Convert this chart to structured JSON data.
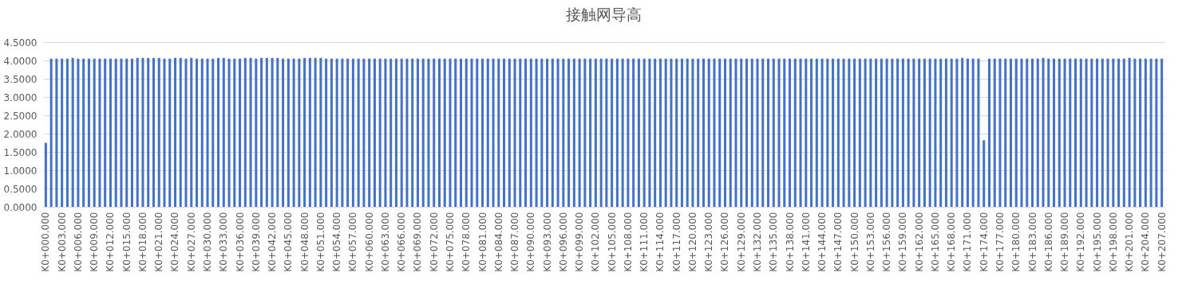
{
  "chart_data": {
    "type": "bar",
    "title": "接触网导高",
    "color": "#4472c4",
    "grid": "y",
    "ylim": [
      0,
      4.5
    ],
    "yticks": [
      {
        "value": 0,
        "label": "0.0000"
      },
      {
        "value": 0.5,
        "label": "0.5000"
      },
      {
        "value": 1,
        "label": "1.0000"
      },
      {
        "value": 1.5,
        "label": "1.5000"
      },
      {
        "value": 2,
        "label": "2.0000"
      },
      {
        "value": 2.5,
        "label": "2.5000"
      },
      {
        "value": 3,
        "label": "3.0000"
      },
      {
        "value": 3.5,
        "label": "3.5000"
      },
      {
        "value": 4,
        "label": "4.0000"
      },
      {
        "value": 4.5,
        "label": "4.5000"
      }
    ],
    "categories": [
      "K0+000.000",
      null,
      null,
      "K0+003.000",
      null,
      null,
      "K0+006.000",
      null,
      null,
      "K0+009.000",
      null,
      null,
      "K0+012.000",
      null,
      null,
      "K0+015.000",
      null,
      null,
      "K0+018.000",
      null,
      null,
      "K0+021.000",
      null,
      null,
      "K0+024.000",
      null,
      null,
      "K0+027.000",
      null,
      null,
      "K0+030.000",
      null,
      null,
      "K0+033.000",
      null,
      null,
      "K0+036.000",
      null,
      null,
      "K0+039.000",
      null,
      null,
      "K0+042.000",
      null,
      null,
      "K0+045.000",
      null,
      null,
      "K0+048.000",
      null,
      null,
      "K0+051.000",
      null,
      null,
      "K0+054.000",
      null,
      null,
      "K0+057.000",
      null,
      null,
      "K0+060.000",
      null,
      null,
      "K0+063.000",
      null,
      null,
      "K0+066.000",
      null,
      null,
      "K0+069.000",
      null,
      null,
      "K0+072.000",
      null,
      null,
      "K0+075.000",
      null,
      null,
      "K0+078.000",
      null,
      null,
      "K0+081.000",
      null,
      null,
      "K0+084.000",
      null,
      null,
      "K0+087.000",
      null,
      null,
      "K0+090.000",
      null,
      null,
      "K0+093.000",
      null,
      null,
      "K0+096.000",
      null,
      null,
      "K0+099.000",
      null,
      null,
      "K0+102.000",
      null,
      null,
      "K0+105.000",
      null,
      null,
      "K0+108.000",
      null,
      null,
      "K0+111.000",
      null,
      null,
      "K0+114.000",
      null,
      null,
      "K0+117.000",
      null,
      null,
      "K0+120.000",
      null,
      null,
      "K0+123.000",
      null,
      null,
      "K0+126.000",
      null,
      null,
      "K0+129.000",
      null,
      null,
      "K0+132.000",
      null,
      null,
      "K0+135.000",
      null,
      null,
      "K0+138.000",
      null,
      null,
      "K0+141.000",
      null,
      null,
      "K0+144.000",
      null,
      null,
      "K0+147.000",
      null,
      null,
      "K0+150.000",
      null,
      null,
      "K0+153.000",
      null,
      null,
      "K0+156.000",
      null,
      null,
      "K0+159.000",
      null,
      null,
      "K0+162.000",
      null,
      null,
      "K0+165.000",
      null,
      null,
      "K0+168.000",
      null,
      null,
      "K0+171.000",
      null,
      null,
      "K0+174.000",
      null,
      null,
      "K0+177.000",
      null,
      null,
      "K0+180.000",
      null,
      null,
      "K0+183.000",
      null,
      null,
      "K0+186.000",
      null,
      null,
      "K0+189.000",
      null,
      null,
      "K0+192.000",
      null,
      null,
      "K0+195.000",
      null,
      null,
      "K0+198.000",
      null,
      null,
      "K0+201.000",
      null,
      null,
      "K0+204.000",
      null,
      null,
      "K0+207.000"
    ],
    "values": [
      1.75,
      4.05,
      4.05,
      4.05,
      4.05,
      4.07,
      4.05,
      4.05,
      4.05,
      4.05,
      4.05,
      4.05,
      4.05,
      4.05,
      4.05,
      4.05,
      4.05,
      4.07,
      4.07,
      4.07,
      4.07,
      4.07,
      4.05,
      4.05,
      4.07,
      4.07,
      4.05,
      4.07,
      4.05,
      4.05,
      4.05,
      4.05,
      4.07,
      4.07,
      4.05,
      4.05,
      4.05,
      4.07,
      4.07,
      4.05,
      4.07,
      4.07,
      4.07,
      4.07,
      4.05,
      4.05,
      4.05,
      4.05,
      4.07,
      4.07,
      4.07,
      4.07,
      4.05,
      4.05,
      4.05,
      4.05,
      4.05,
      4.05,
      4.05,
      4.05,
      4.05,
      4.05,
      4.05,
      4.05,
      4.05,
      4.05,
      4.05,
      4.05,
      4.05,
      4.05,
      4.05,
      4.05,
      4.05,
      4.05,
      4.05,
      4.05,
      4.05,
      4.05,
      4.05,
      4.05,
      4.05,
      4.05,
      4.05,
      4.05,
      4.05,
      4.05,
      4.05,
      4.05,
      4.05,
      4.05,
      4.05,
      4.05,
      4.05,
      4.05,
      4.05,
      4.05,
      4.05,
      4.05,
      4.05,
      4.05,
      4.05,
      4.05,
      4.05,
      4.05,
      4.05,
      4.05,
      4.05,
      4.05,
      4.05,
      4.05,
      4.05,
      4.05,
      4.05,
      4.05,
      4.05,
      4.05,
      4.05,
      4.05,
      4.05,
      4.05,
      4.05,
      4.05,
      4.05,
      4.05,
      4.05,
      4.05,
      4.05,
      4.05,
      4.05,
      4.05,
      4.05,
      4.05,
      4.05,
      4.05,
      4.05,
      4.05,
      4.05,
      4.05,
      4.05,
      4.05,
      4.05,
      4.05,
      4.05,
      4.05,
      4.05,
      4.05,
      4.05,
      4.05,
      4.05,
      4.05,
      4.05,
      4.05,
      4.05,
      4.05,
      4.05,
      4.05,
      4.05,
      4.05,
      4.05,
      4.05,
      4.05,
      4.05,
      4.05,
      4.05,
      4.05,
      4.05,
      4.05,
      4.05,
      4.05,
      4.05,
      4.07,
      4.05,
      4.05,
      4.05,
      1.82,
      4.05,
      4.05,
      4.05,
      4.05,
      4.05,
      4.05,
      4.05,
      4.05,
      4.05,
      4.05,
      4.07,
      4.05,
      4.05,
      4.05,
      4.05,
      4.05,
      4.05,
      4.05,
      4.05,
      4.05,
      4.05,
      4.05,
      4.05,
      4.05,
      4.05,
      4.05,
      4.07,
      4.05,
      4.05,
      4.05,
      4.05,
      4.05,
      4.05
    ]
  }
}
